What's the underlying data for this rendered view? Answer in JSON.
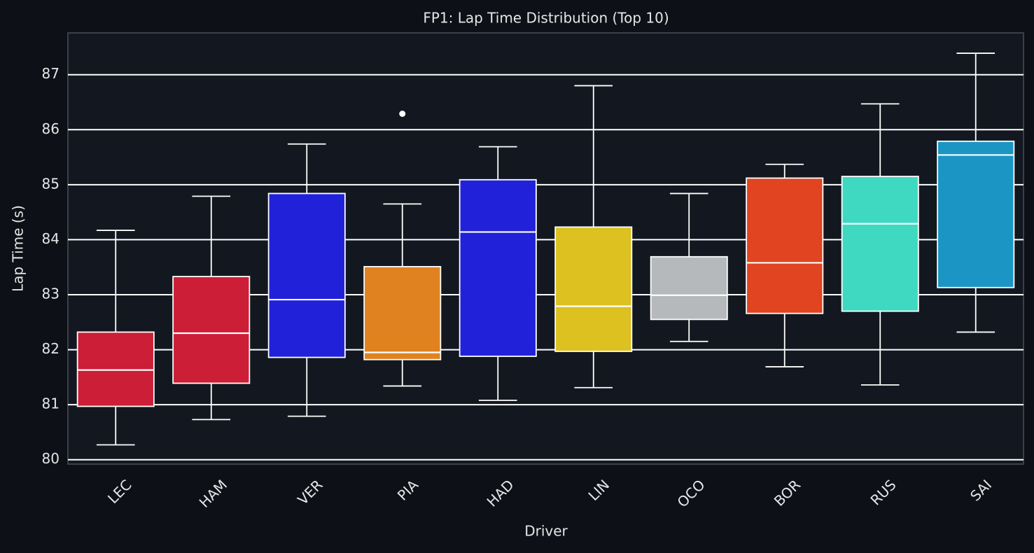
{
  "chart_data": {
    "type": "box",
    "title": "FP1: Lap Time Distribution (Top 10)",
    "x_label": "Driver",
    "y_label": "Lap Time (s)",
    "categories": [
      "LEC",
      "HAM",
      "VER",
      "PIA",
      "HAD",
      "LIN",
      "OCO",
      "BOR",
      "RUS",
      "SAI"
    ],
    "boxes": [
      {
        "color": "#cc1e36",
        "whislo": 80.27,
        "q1": 80.97,
        "med": 81.63,
        "q3": 82.32,
        "whishi": 84.17
      },
      {
        "color": "#cc1e36",
        "whislo": 80.73,
        "q1": 81.39,
        "med": 82.3,
        "q3": 83.33,
        "whishi": 84.79
      },
      {
        "color": "#2121d9",
        "whislo": 80.79,
        "q1": 81.86,
        "med": 82.91,
        "q3": 84.84,
        "whishi": 85.74
      },
      {
        "color": "#e0821f",
        "whislo": 81.34,
        "q1": 81.82,
        "med": 81.95,
        "q3": 83.51,
        "whishi": 84.65,
        "fliers": [
          86.29
        ]
      },
      {
        "color": "#2121d9",
        "whislo": 81.08,
        "q1": 81.88,
        "med": 84.14,
        "q3": 85.09,
        "whishi": 85.69
      },
      {
        "color": "#dcc121",
        "whislo": 81.31,
        "q1": 81.97,
        "med": 82.79,
        "q3": 84.23,
        "whishi": 86.8
      },
      {
        "color": "#b5b9bc",
        "whislo": 82.15,
        "q1": 82.55,
        "med": 82.99,
        "q3": 83.69,
        "whishi": 84.84
      },
      {
        "color": "#e04421",
        "whislo": 81.69,
        "q1": 82.66,
        "med": 83.58,
        "q3": 85.12,
        "whishi": 85.37
      },
      {
        "color": "#3fd9c2",
        "whislo": 81.36,
        "q1": 82.7,
        "med": 84.29,
        "q3": 85.15,
        "whishi": 86.47
      },
      {
        "color": "#1b95c4",
        "whislo": 82.32,
        "q1": 83.13,
        "med": 85.54,
        "q3": 85.79,
        "whishi": 87.39
      }
    ],
    "ylim": [
      79.92,
      87.76
    ],
    "yticks": [
      80,
      81,
      82,
      83,
      84,
      85,
      86,
      87
    ],
    "grid": true
  }
}
